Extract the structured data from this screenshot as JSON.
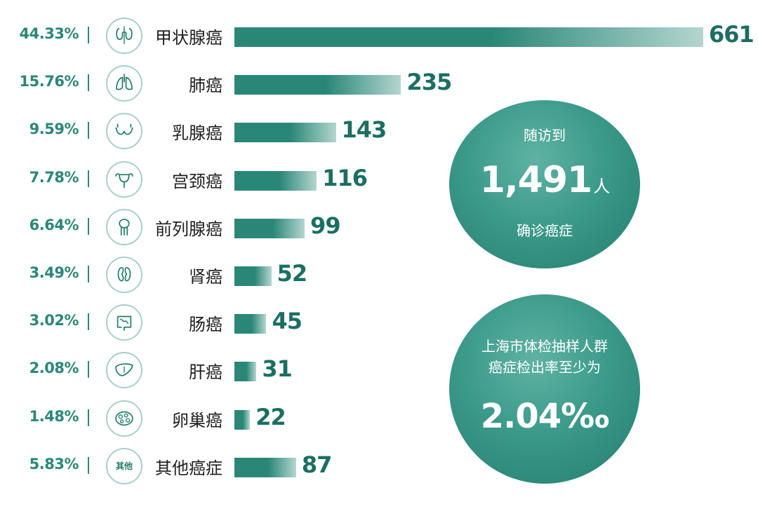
{
  "chart_data": {
    "type": "bar",
    "orientation": "horizontal",
    "title": "",
    "xlabel": "",
    "ylabel": "",
    "categories": [
      "甲状腺癌",
      "肺癌",
      "乳腺癌",
      "宫颈癌",
      "前列腺癌",
      "肾癌",
      "肠癌",
      "肝癌",
      "卵巢癌",
      "其他癌症"
    ],
    "values": [
      661,
      235,
      143,
      116,
      99,
      52,
      45,
      31,
      22,
      87
    ],
    "percentages": [
      "44.33%",
      "15.76%",
      "9.59%",
      "7.78%",
      "6.64%",
      "3.49%",
      "3.02%",
      "2.08%",
      "1.48%",
      "5.83%"
    ],
    "icons": [
      "thyroid-icon",
      "lungs-icon",
      "breast-icon",
      "uterus-icon",
      "prostate-icon",
      "kidney-icon",
      "intestine-icon",
      "liver-icon",
      "ovary-icon",
      "other-icon"
    ],
    "other_icon_text": "其他",
    "xlim": [
      0,
      661
    ],
    "grid": false,
    "colors": {
      "bar": "#2a8778",
      "bar_fade": "#b3d6cf",
      "percent": "#2a8778",
      "value": "#1b6e62"
    }
  },
  "stats": {
    "followup": {
      "top_label": "随访到",
      "count": "1,491",
      "unit": "人",
      "bottom_label": "确诊癌症"
    },
    "rate": {
      "line1": "上海市体检抽样人群",
      "line2": "癌症检出率至少为",
      "value": "2.04‰"
    }
  }
}
